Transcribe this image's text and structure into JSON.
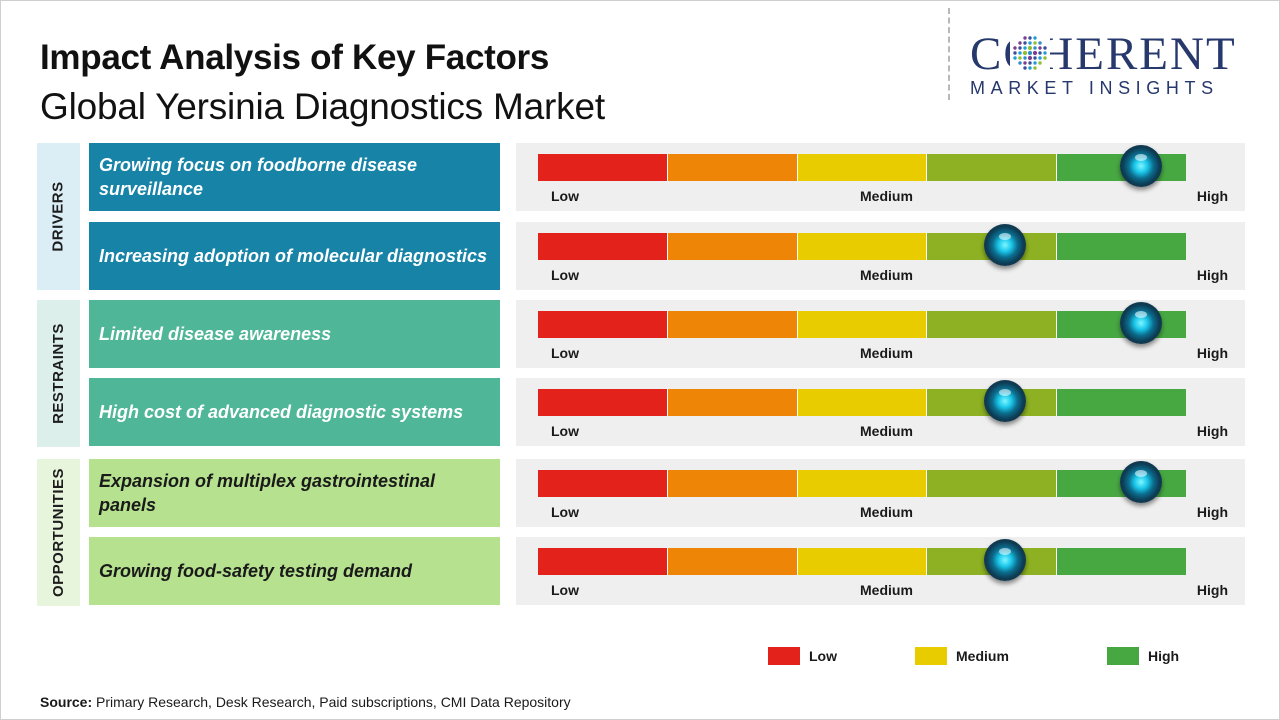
{
  "header": {
    "title": "Impact Analysis of Key Factors",
    "subtitle": "Global Yersinia Diagnostics Market"
  },
  "logo": {
    "main": "COHERENT",
    "sub": "MARKET INSIGHTS"
  },
  "groups": [
    {
      "label": "DRIVERS",
      "color": "#dbeef6"
    },
    {
      "label": "RESTRAINTS",
      "color": "#dcefeb"
    },
    {
      "label": "OPPORTUNITIES",
      "color": "#e8f5dd"
    }
  ],
  "scale": {
    "low_label": "Low",
    "medium_label": "Medium",
    "high_label": "High",
    "segment_colors": [
      "#e3231b",
      "#ef8506",
      "#e8cc00",
      "#8db122",
      "#47a842"
    ]
  },
  "chart_data": {
    "type": "gauge",
    "scale_range": [
      0,
      5
    ],
    "factors": [
      {
        "group": "DRIVERS",
        "label": "Growing focus on foodborne disease surveillance",
        "impact": 4.65,
        "level": "High",
        "color": "#1683a7"
      },
      {
        "group": "DRIVERS",
        "label": "Increasing adoption of molecular diagnostics",
        "impact": 3.6,
        "level": "Medium-High",
        "color": "#1683a7"
      },
      {
        "group": "RESTRAINTS",
        "label": "Limited disease awareness",
        "impact": 4.65,
        "level": "High",
        "color": "#4fb697"
      },
      {
        "group": "RESTRAINTS",
        "label": "High cost of advanced diagnostic systems",
        "impact": 3.6,
        "level": "Medium-High",
        "color": "#4fb697"
      },
      {
        "group": "OPPORTUNITIES",
        "label": "Expansion of multiplex gastrointestinal panels",
        "impact": 4.65,
        "level": "High",
        "color": "#b6e28f"
      },
      {
        "group": "OPPORTUNITIES",
        "label": "Growing food-safety testing demand",
        "impact": 3.6,
        "level": "Medium-High",
        "color": "#b6e28f"
      }
    ]
  },
  "legend": [
    {
      "label": "Low",
      "color": "#e3231b"
    },
    {
      "label": "Medium",
      "color": "#e8cc00"
    },
    {
      "label": "High",
      "color": "#47a842"
    }
  ],
  "source": {
    "label": "Source:",
    "text": "Primary Research, Desk Research, Paid subscriptions, CMI Data Repository"
  }
}
